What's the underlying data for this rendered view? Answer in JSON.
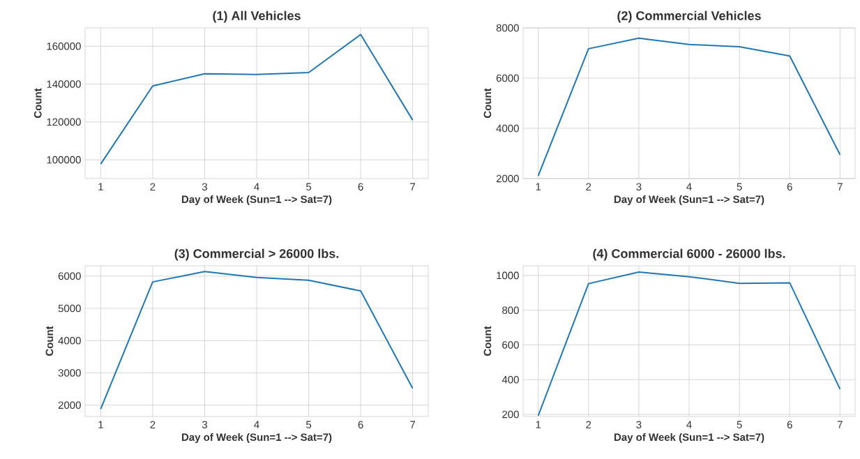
{
  "chart_data": [
    {
      "type": "line",
      "title": "(1) All Vehicles",
      "xlabel": "Day of Week (Sun=1 --> Sat=7)",
      "ylabel": "Count",
      "x": [
        1,
        2,
        3,
        4,
        5,
        6,
        7
      ],
      "values": [
        97800,
        139000,
        145500,
        145100,
        146100,
        166200,
        121000
      ],
      "color": "#1f77b4",
      "xlim": [
        0.7,
        7.3
      ],
      "ylim": [
        90100,
        169700
      ],
      "xticks": [
        1,
        2,
        3,
        4,
        5,
        6,
        7
      ],
      "yticks": [
        100000,
        120000,
        140000,
        160000
      ],
      "grid": true
    },
    {
      "type": "line",
      "title": "(2) Commercial Vehicles",
      "xlabel": "Day of Week (Sun=1 --> Sat=7)",
      "ylabel": "Count",
      "x": [
        1,
        2,
        3,
        4,
        5,
        6,
        7
      ],
      "values": [
        2110,
        7170,
        7590,
        7340,
        7250,
        6880,
        2950
      ],
      "color": "#1f77b4",
      "xlim": [
        0.7,
        7.3
      ],
      "ylim": [
        2000,
        8000
      ],
      "xticks": [
        1,
        2,
        3,
        4,
        5,
        6,
        7
      ],
      "yticks": [
        2000,
        4000,
        6000,
        8000
      ],
      "grid": true
    },
    {
      "type": "line",
      "title": "(3) Commercial > 26000 lbs.",
      "xlabel": "Day of Week (Sun=1 --> Sat=7)",
      "ylabel": "Count",
      "x": [
        1,
        2,
        3,
        4,
        5,
        6,
        7
      ],
      "values": [
        1880,
        5820,
        6140,
        5960,
        5870,
        5540,
        2520
      ],
      "color": "#1f77b4",
      "xlim": [
        0.7,
        7.3
      ],
      "ylim": [
        1650,
        6320
      ],
      "xticks": [
        1,
        2,
        3,
        4,
        5,
        6,
        7
      ],
      "yticks": [
        2000,
        3000,
        4000,
        5000,
        6000
      ],
      "grid": true
    },
    {
      "type": "line",
      "title": "(4) Commercial 6000 - 26000 lbs.",
      "xlabel": "Day of Week (Sun=1 --> Sat=7)",
      "ylabel": "Count",
      "x": [
        1,
        2,
        3,
        4,
        5,
        6,
        7
      ],
      "values": [
        192,
        953,
        1020,
        993,
        955,
        958,
        345
      ],
      "color": "#1f77b4",
      "xlim": [
        0.7,
        7.3
      ],
      "ylim": [
        188,
        1056
      ],
      "xticks": [
        1,
        2,
        3,
        4,
        5,
        6,
        7
      ],
      "yticks": [
        200,
        400,
        600,
        800,
        1000
      ],
      "grid": true
    }
  ]
}
